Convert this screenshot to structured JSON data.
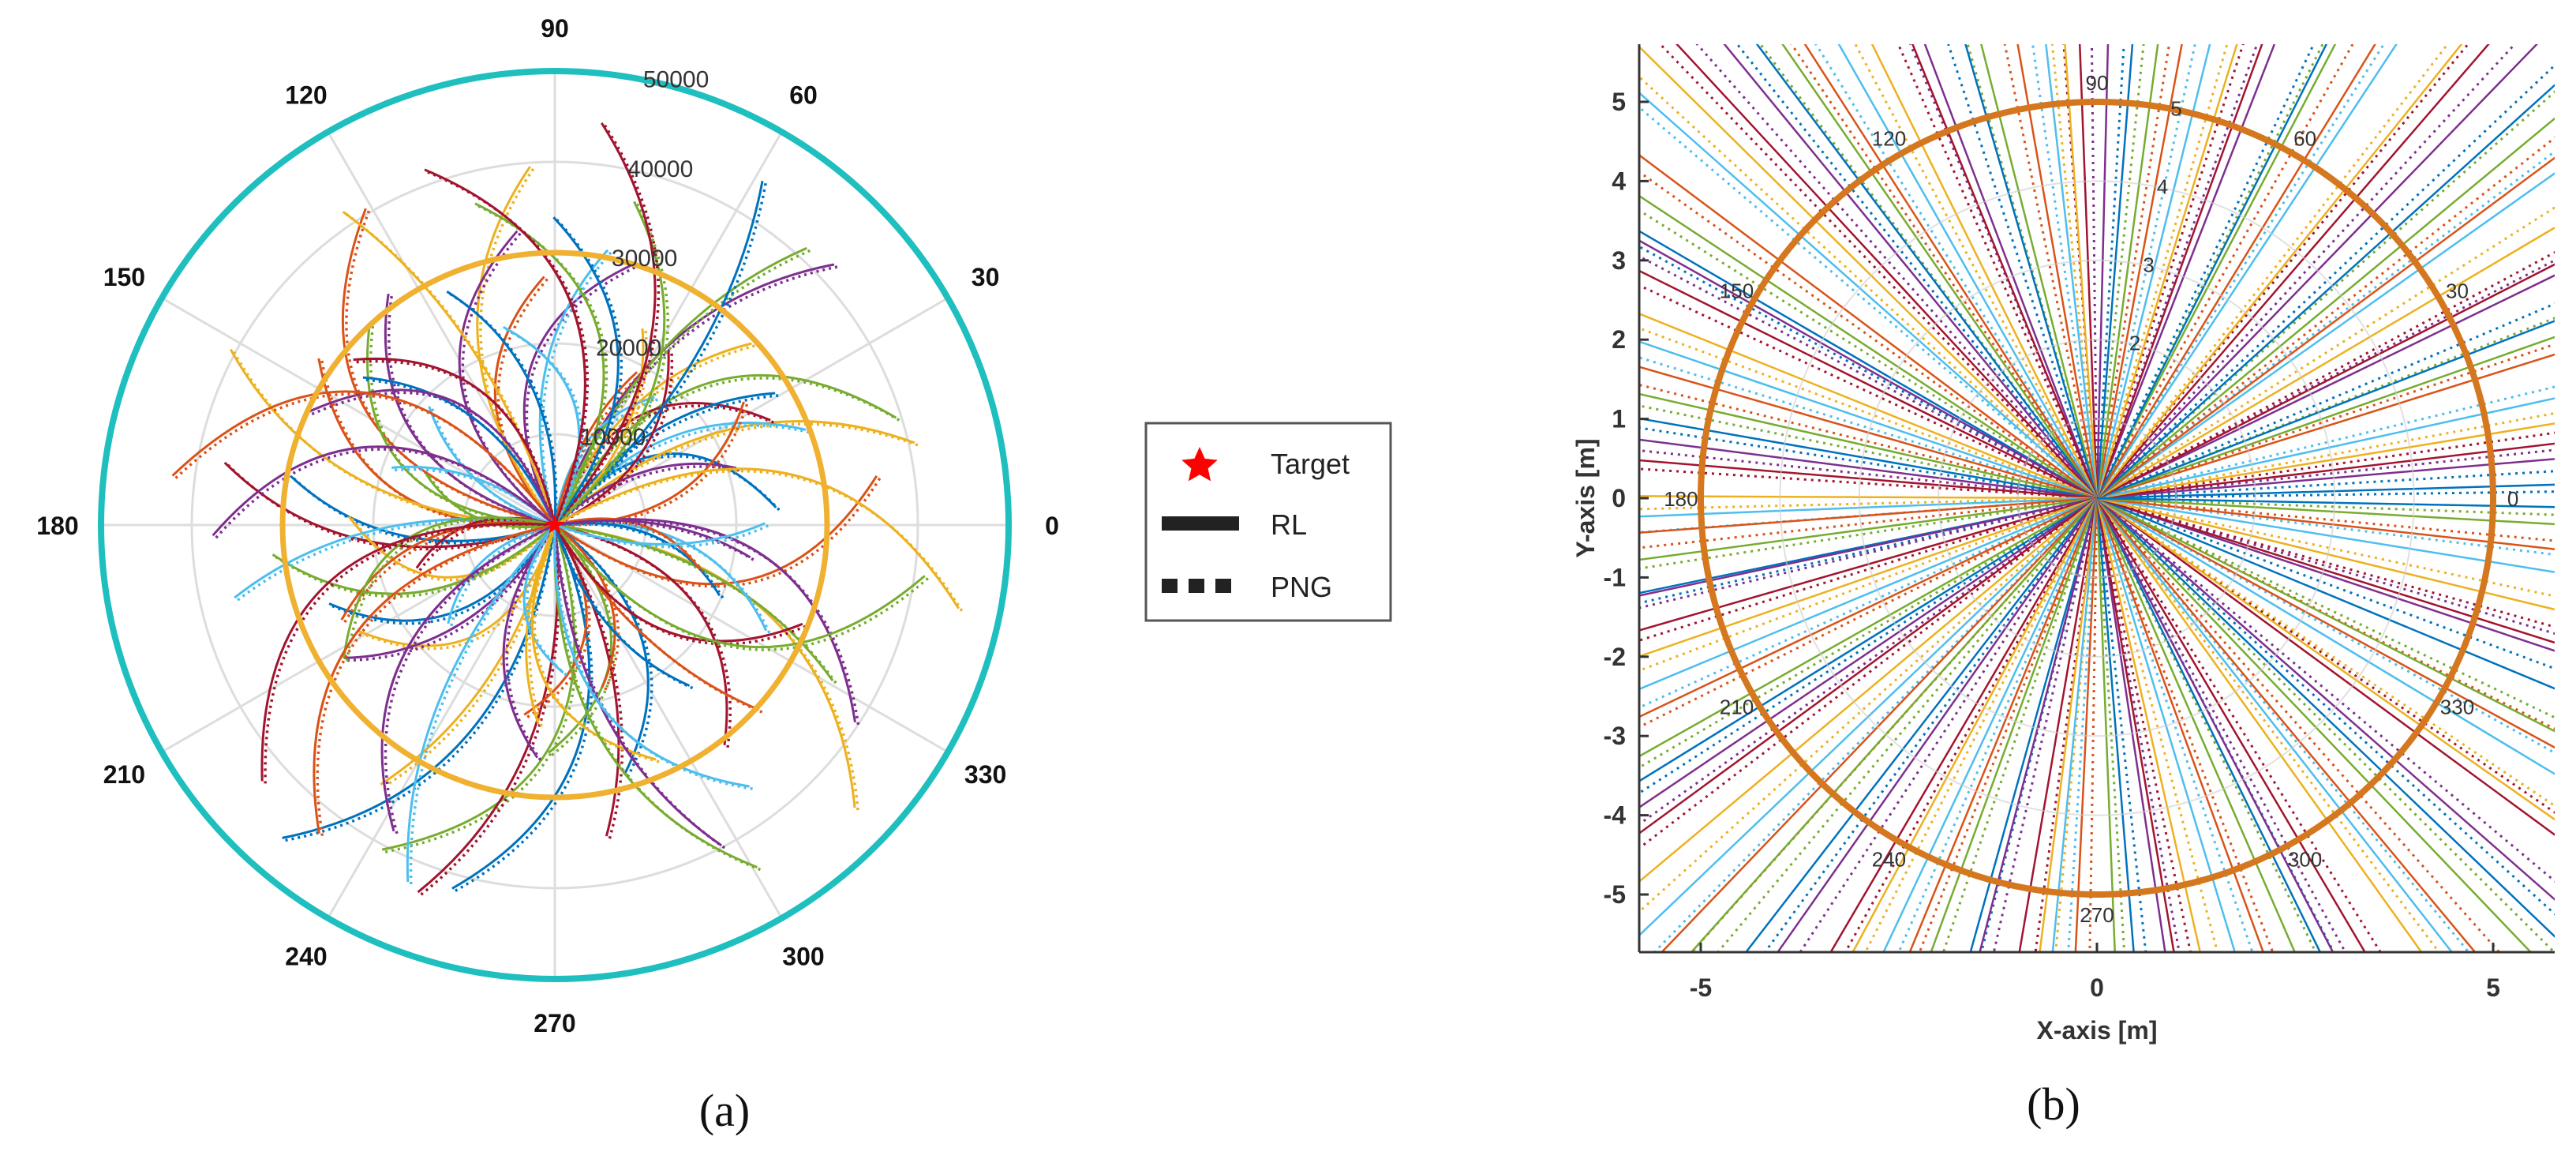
{
  "figure": {
    "panel_a_label": "(a)",
    "panel_b_label": "(b)"
  },
  "legend": {
    "items": [
      {
        "symbol": "star",
        "label": "Target"
      },
      {
        "symbol": "solid-line",
        "label": "RL"
      },
      {
        "symbol": "dotted-line",
        "label": "PNG"
      }
    ]
  },
  "colors": {
    "series": [
      "#0072bd",
      "#d95319",
      "#edb120",
      "#7e2f8e",
      "#77ac30",
      "#4dbeee",
      "#a2142f"
    ],
    "outer_ring_a": "#1fbfbf",
    "inner_ring_a": "#f0b030",
    "ring_b": "#d4771e",
    "target": "#ff0000",
    "grid": "#dddddd"
  },
  "chart_data": [
    {
      "type": "polar-line",
      "panel": "(a)",
      "title": "",
      "theta_ticks": [
        "0",
        "30",
        "60",
        "90",
        "120",
        "150",
        "180",
        "210",
        "240",
        "270",
        "300",
        "330"
      ],
      "r_ticks": [
        "10000",
        "20000",
        "30000",
        "40000",
        "50000"
      ],
      "rlim": [
        0,
        50000
      ],
      "rings": [
        {
          "name": "outer boundary",
          "r": 50000
        },
        {
          "name": "inner circle",
          "r": 30000
        }
      ],
      "target": {
        "r": 0,
        "theta": 0
      },
      "series": [
        {
          "name": "RL",
          "style": "solid",
          "description": "curved trajectories from launch points toward target at origin"
        },
        {
          "name": "PNG",
          "style": "dotted",
          "description": "curved trajectories from launch points toward target at origin"
        }
      ],
      "trajectory_count": 90
    },
    {
      "type": "line",
      "panel": "(b)",
      "title": "",
      "xlabel": "X-axis [m]",
      "ylabel": "Y-axis [m]",
      "xlim": [
        -5.8,
        5.8
      ],
      "ylim": [
        -5.8,
        5.8
      ],
      "xticks": [
        "-5",
        "0",
        "5"
      ],
      "yticks": [
        "-5",
        "-4",
        "-3",
        "-2",
        "-1",
        "0",
        "1",
        "2",
        "3",
        "4",
        "5"
      ],
      "polar_angle_labels": [
        "0",
        "30",
        "60",
        "90",
        "120",
        "150",
        "180",
        "210",
        "240",
        "270",
        "300",
        "330"
      ],
      "polar_r_labels": [
        "2",
        "3",
        "4",
        "5"
      ],
      "ring": {
        "r": 5
      },
      "series": [
        {
          "name": "RL",
          "style": "solid",
          "description": "straight trajectories converging at origin"
        },
        {
          "name": "PNG",
          "style": "dotted",
          "description": "straight trajectories converging at origin"
        }
      ],
      "trajectory_count": 120
    }
  ]
}
